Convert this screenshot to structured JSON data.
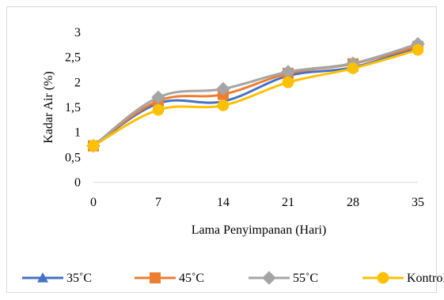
{
  "chart_data": {
    "type": "line",
    "x": [
      0,
      7,
      14,
      21,
      28,
      35
    ],
    "xlabel": "Lama Penyimpanan (Hari)",
    "ylabel": "Kadar Air (%)",
    "ylim": [
      0,
      3
    ],
    "y_ticks": [
      "0",
      "0,5",
      "1",
      "1,5",
      "2",
      "2,5",
      "3"
    ],
    "y_tick_values": [
      0,
      0.5,
      1,
      1.5,
      2,
      2.5,
      3
    ],
    "x_ticks": [
      "0",
      "7",
      "14",
      "21",
      "28",
      "35"
    ],
    "grid": false,
    "legend_position": "bottom",
    "series": [
      {
        "name": "35˚C",
        "color": "#4472C4",
        "marker": "triangle",
        "values": [
          0.73,
          1.58,
          1.62,
          2.13,
          2.3,
          2.7
        ]
      },
      {
        "name": "45˚C",
        "color": "#ED7D31",
        "marker": "square",
        "values": [
          0.73,
          1.63,
          1.76,
          2.18,
          2.37,
          2.72
        ]
      },
      {
        "name": "55˚C",
        "color": "#A5A5A5",
        "marker": "diamond",
        "values": [
          0.73,
          1.7,
          1.87,
          2.21,
          2.38,
          2.77
        ]
      },
      {
        "name": "Kontrol",
        "color": "#FFC000",
        "marker": "circle",
        "values": [
          0.73,
          1.45,
          1.54,
          2.0,
          2.28,
          2.65
        ]
      }
    ]
  }
}
